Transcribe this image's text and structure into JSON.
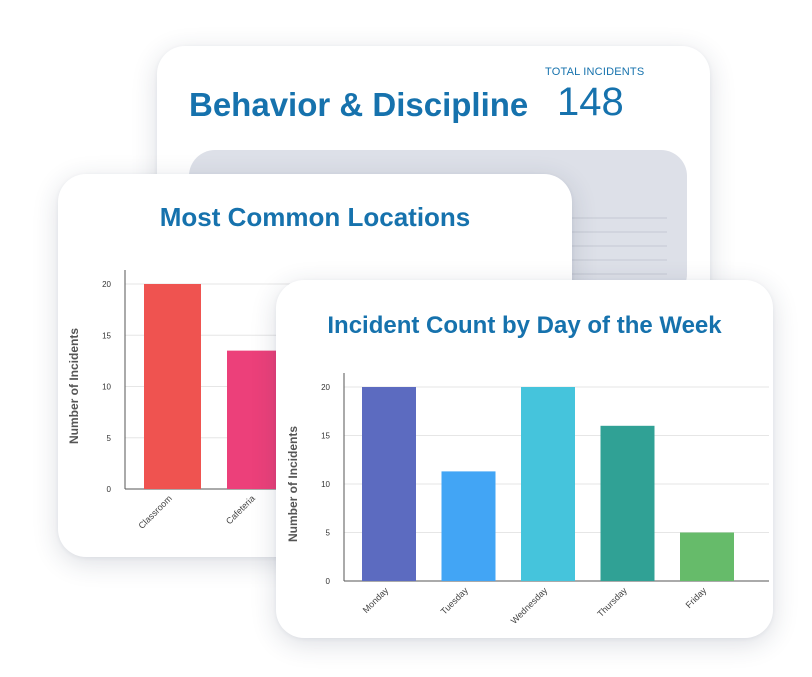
{
  "back_card": {
    "title": "Behavior & Discipline",
    "kpi_label": "TOTAL INCIDENTS",
    "kpi_value": "148"
  },
  "colors": {
    "title": "#1672ad",
    "panel": "#dde0e8"
  },
  "chart_data": [
    {
      "type": "bar",
      "title": "Most Common Locations",
      "ylabel": "Number of Incidents",
      "xlabel": "",
      "categories": [
        "Classroom",
        "Cafeteria"
      ],
      "values": [
        20,
        13.5
      ],
      "colors": [
        "#ef5350",
        "#ec407a"
      ],
      "yticks": [
        0,
        5,
        10,
        15,
        20
      ],
      "ylim": [
        0,
        20
      ],
      "grid": true
    },
    {
      "type": "bar",
      "title": "Incident Count by Day of the Week",
      "ylabel": "Number of Incidents",
      "xlabel": "",
      "categories": [
        "Monday",
        "Tuesday",
        "Wednesday",
        "Thursday",
        "Friday"
      ],
      "values": [
        20,
        11.3,
        20,
        16,
        5
      ],
      "colors": [
        "#5c6bc0",
        "#42a5f5",
        "#45c4dc",
        "#30a195",
        "#66bb6a"
      ],
      "yticks": [
        0,
        5,
        10,
        15,
        20
      ],
      "ylim": [
        0,
        20
      ],
      "grid": true
    }
  ]
}
